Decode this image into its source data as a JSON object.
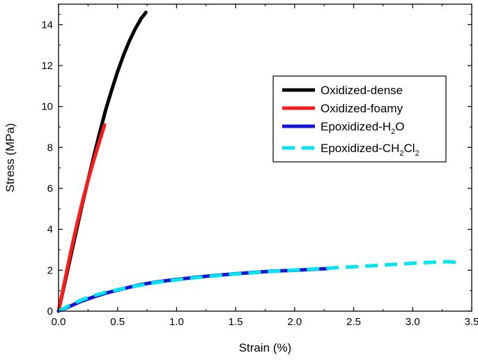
{
  "chart_data": {
    "type": "line",
    "title": "",
    "xlabel": "Strain (%)",
    "ylabel": "Stress (MPa)",
    "xlim": [
      0,
      3.5
    ],
    "ylim": [
      0,
      15
    ],
    "xticks": [
      0.0,
      0.5,
      1.0,
      1.5,
      2.0,
      2.5,
      3.0,
      3.5
    ],
    "yticks": [
      0,
      2,
      4,
      6,
      8,
      10,
      12,
      14
    ],
    "xtick_labels": [
      "0.0",
      "0.5",
      "1.0",
      "1.5",
      "2.0",
      "2.5",
      "3.0",
      "3.5"
    ],
    "ytick_labels": [
      "0",
      "2",
      "4",
      "6",
      "8",
      "10",
      "12",
      "14"
    ],
    "grid": false,
    "legend_placement": "upper-right",
    "series": [
      {
        "name": "Oxidized-dense",
        "legend": {
          "base": "Oxidized-dense",
          "parts": []
        },
        "color": "#000000",
        "dash": "solid",
        "x": [
          0.0,
          0.05,
          0.1,
          0.15,
          0.2,
          0.25,
          0.3,
          0.35,
          0.4,
          0.45,
          0.5,
          0.55,
          0.6,
          0.65,
          0.7,
          0.74
        ],
        "y": [
          0.0,
          1.3,
          2.6,
          3.9,
          5.2,
          6.4,
          7.6,
          8.75,
          9.85,
          10.8,
          11.7,
          12.5,
          13.2,
          13.8,
          14.3,
          14.6
        ]
      },
      {
        "name": "Oxidized-foamy",
        "legend": {
          "base": "Oxidized-foamy",
          "parts": []
        },
        "color": "#ff1a1a",
        "dash": "solid",
        "x": [
          0.0,
          0.05,
          0.1,
          0.15,
          0.2,
          0.25,
          0.3,
          0.35,
          0.39
        ],
        "y": [
          0.0,
          1.4,
          2.8,
          4.1,
          5.3,
          6.4,
          7.4,
          8.35,
          9.1
        ]
      },
      {
        "name": "Epoxidized-H2O",
        "legend": {
          "base": "Epoxidized-H",
          "parts": [
            {
              "text": "2",
              "sub": true
            },
            {
              "text": "O",
              "sub": false
            }
          ]
        },
        "color": "#1414d9",
        "dash": "solid",
        "x": [
          0.0,
          0.1,
          0.2,
          0.3,
          0.4,
          0.5,
          0.6,
          0.7,
          0.8,
          0.9,
          1.0,
          1.2,
          1.4,
          1.6,
          1.8,
          2.0,
          2.2,
          2.28
        ],
        "y": [
          0.0,
          0.25,
          0.5,
          0.7,
          0.88,
          1.03,
          1.17,
          1.3,
          1.4,
          1.48,
          1.55,
          1.68,
          1.78,
          1.87,
          1.95,
          2.0,
          2.06,
          2.08
        ]
      },
      {
        "name": "Epoxidized-CH2Cl2",
        "legend": {
          "base": "Epoxidized-CH",
          "parts": [
            {
              "text": "2",
              "sub": true
            },
            {
              "text": "Cl",
              "sub": false
            },
            {
              "text": "2",
              "sub": true
            }
          ]
        },
        "color": "#00e5f2",
        "dash": "dashed",
        "x": [
          0.0,
          0.1,
          0.2,
          0.3,
          0.4,
          0.5,
          0.6,
          0.8,
          1.0,
          1.2,
          1.4,
          1.6,
          1.8,
          2.0,
          2.2,
          2.4,
          2.6,
          2.8,
          3.0,
          3.2,
          3.3,
          3.38
        ],
        "y": [
          0.0,
          0.3,
          0.56,
          0.76,
          0.92,
          1.05,
          1.17,
          1.38,
          1.53,
          1.66,
          1.77,
          1.86,
          1.94,
          2.01,
          2.07,
          2.14,
          2.2,
          2.27,
          2.34,
          2.4,
          2.42,
          2.37
        ]
      }
    ]
  }
}
